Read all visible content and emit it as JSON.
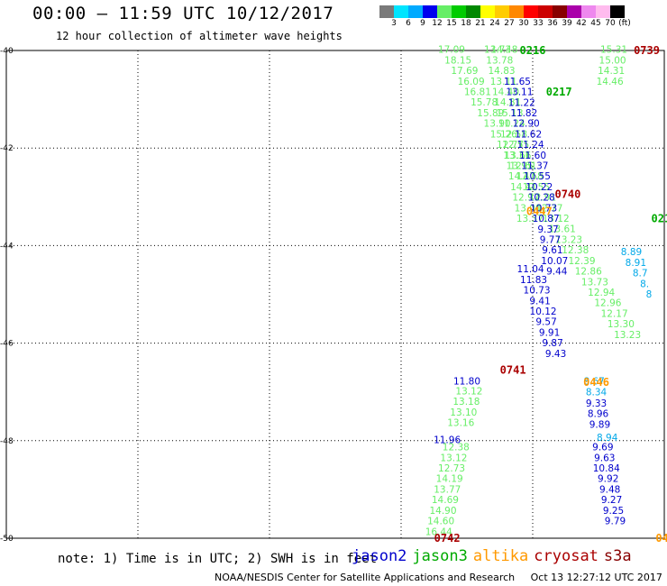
{
  "title": "00:00 – 11:59 UTC 10/12/2017",
  "subtitle": "12 hour collection of altimeter wave heights",
  "colorbar": {
    "unit": "(ft)",
    "labels": [
      "3",
      "6",
      "9",
      "12",
      "15",
      "18",
      "21",
      "24",
      "27",
      "30",
      "33",
      "36",
      "39",
      "42",
      "45",
      "70"
    ],
    "colors": [
      "#7a7a7a",
      "#00e5ff",
      "#00aaff",
      "#0000ee",
      "#66ee66",
      "#00cc00",
      "#008800",
      "#ffff00",
      "#ffcc00",
      "#ff8800",
      "#ff0000",
      "#cc0000",
      "#880000",
      "#aa00aa",
      "#ee88ee",
      "#ffbbee",
      "#000000"
    ]
  },
  "axes": {
    "x_ticks": [
      "15",
      "18",
      "21",
      "24",
      "27",
      "30"
    ],
    "y_ticks": [
      "-40",
      "-42",
      "-44",
      "-46",
      "-48",
      "-50"
    ],
    "x_range": [
      15,
      30
    ],
    "y_range": [
      -50,
      -40
    ]
  },
  "passes": [
    {
      "sat": "jason2",
      "label": "0216",
      "lon": 27.0,
      "lat": -40.0
    },
    {
      "sat": "jason2",
      "label": "0217",
      "lon": 27.6,
      "lat": -40.85
    },
    {
      "sat": "jason2",
      "label": "0214",
      "lon": 30.0,
      "lat": -43.45
    },
    {
      "sat": "cryosat",
      "label": "0739",
      "lon": 29.6,
      "lat": -40.0
    },
    {
      "sat": "cryosat",
      "label": "0740",
      "lon": 27.8,
      "lat": -42.95
    },
    {
      "sat": "cryosat",
      "label": "0741",
      "lon": 26.55,
      "lat": -46.55
    },
    {
      "sat": "cryosat",
      "label": "0742",
      "lon": 25.05,
      "lat": -50.0
    },
    {
      "sat": "altika",
      "label": "0447",
      "lon": 27.15,
      "lat": -43.3
    },
    {
      "sat": "altika",
      "label": "0446",
      "lon": 28.45,
      "lat": -46.8
    },
    {
      "sat": "altika",
      "label": "04",
      "lon": 29.95,
      "lat": -50.0
    }
  ],
  "tracks": [
    {
      "color": "#66ee66",
      "lon0": 25.15,
      "lat0": -40.05,
      "dlon": 0.1485,
      "dlat": -0.2164,
      "values": [
        "17.09",
        "18.15",
        "17.69",
        "16.09",
        "16.81",
        "15.78",
        "15.89",
        "13.90",
        "15.26",
        "12.77",
        "13.31",
        "12.61",
        "12.58",
        "12.55",
        "12.91",
        "12.77",
        "13.12",
        "13.61",
        "13.23",
        "12.38",
        "12.39",
        "12.86",
        "13.73",
        "12.94",
        "12.96",
        "12.17",
        "13.30",
        "13.23"
      ]
    },
    {
      "color": "#66ee66",
      "lon0": 26.2,
      "lat0": -40.05,
      "dlon": 0.046,
      "dlat": -0.2164,
      "values": [
        "13.73",
        "13.78",
        "14.83",
        "13.11",
        "14.40",
        "14.81",
        "15.13",
        "11.24",
        "12.58",
        "12.55",
        "13.66",
        "13.95",
        "14.47",
        "14.41",
        "12.97",
        "13.00",
        "13.37"
      ]
    },
    {
      "color": "#66ee66",
      "lon0": 26.35,
      "lat0": -40.05,
      "dlon": -0.044,
      "dlat": -0.2164,
      "values": [
        "14.48"
      ]
    },
    {
      "color": "#66ee66",
      "lon0": 28.85,
      "lat0": -40.05,
      "dlon": -0.03,
      "dlat": -0.2164,
      "values": [
        "15.31",
        "15.00",
        "14.31",
        "14.46"
      ]
    },
    {
      "color": "#66ee66",
      "lon0": 25.55,
      "lat0": -47.05,
      "dlon": -0.063,
      "dlat": -0.2164,
      "values": [
        "13.12",
        "13.18",
        "13.10",
        "13.16"
      ]
    },
    {
      "color": "#66ee66",
      "lon0": 25.25,
      "lat0": -48.2,
      "dlon": -0.049,
      "dlat": -0.2164,
      "values": [
        "12.38",
        "13.12",
        "12.73",
        "14.19",
        "13.77",
        "14.69",
        "14.90",
        "14.60",
        "16.44"
      ]
    },
    {
      "color": "#0000cc",
      "lon0": 26.65,
      "lat0": -40.7,
      "dlon": 0.05,
      "dlat": -0.2164,
      "values": [
        "11.65",
        "13.11",
        "11.22",
        "11.82",
        "12.90",
        "11.62",
        "11.24",
        "11.60",
        "11.37",
        "10.55",
        "10.22",
        "10.28",
        "10.73",
        "10.87",
        "9.37",
        "9.77",
        "9.61",
        "10.07",
        "9.44"
      ]
    },
    {
      "color": "#0000cc",
      "lon0": 26.95,
      "lat0": -44.55,
      "dlon": 0.072,
      "dlat": -0.2164,
      "values": [
        "11.04",
        "11.83",
        "10.73",
        "9.41",
        "10.12",
        "9.57",
        "9.91",
        "9.87",
        "9.43"
      ]
    },
    {
      "color": "#0000cc",
      "lon0": 25.5,
      "lat0": -46.85,
      "dlon": -0.05,
      "dlat": -0.2164,
      "values": [
        "11.80"
      ]
    },
    {
      "color": "#0000cc",
      "lon0": 25.05,
      "lat0": -48.05,
      "dlon": -0.05,
      "dlat": -0.2164,
      "values": [
        "11.96"
      ]
    },
    {
      "color": "#0000cc",
      "lon0": 28.45,
      "lat0": -47.3,
      "dlon": 0.04,
      "dlat": -0.2164,
      "values": [
        "9.33",
        "8.96",
        "9.89"
      ]
    },
    {
      "color": "#0000cc",
      "lon0": 28.6,
      "lat0": -48.2,
      "dlon": 0.04,
      "dlat": -0.2164,
      "values": [
        "9.69",
        "9.63",
        "10.84",
        "9.92",
        "9.48",
        "9.27",
        "9.25",
        "9.79"
      ]
    },
    {
      "color": "#00a8e8",
      "lon0": 29.25,
      "lat0": -44.2,
      "dlon": 0.1,
      "dlat": -0.2164,
      "values": [
        "8.89",
        "8.91",
        "8.7",
        "8.",
        "8"
      ]
    },
    {
      "color": "#00a8e8",
      "lon0": 28.4,
      "lat0": -46.85,
      "dlon": 0.05,
      "dlat": -0.2164,
      "values": [
        "8.67",
        "8.34"
      ]
    },
    {
      "color": "#00a8e8",
      "lon0": 28.7,
      "lat0": -48.0,
      "dlon": 0.05,
      "dlat": -0.2164,
      "values": [
        "8.94"
      ]
    }
  ],
  "note": "note: 1) Time is in UTC; 2) SWH is in feet",
  "legend": [
    {
      "label": "jason2",
      "color": "#0000cc"
    },
    {
      "label": "jason3",
      "color": "#00aa00"
    },
    {
      "label": "altika",
      "color": "#ff9900"
    },
    {
      "label": "cryosat",
      "color": "#aa0000"
    },
    {
      "label": "s3a",
      "color": "#880000"
    }
  ],
  "credit": "NOAA/NESDIS Center for Satellite Applications and Research",
  "timestamp": "Oct 13 12:27:12 UTC 2017"
}
